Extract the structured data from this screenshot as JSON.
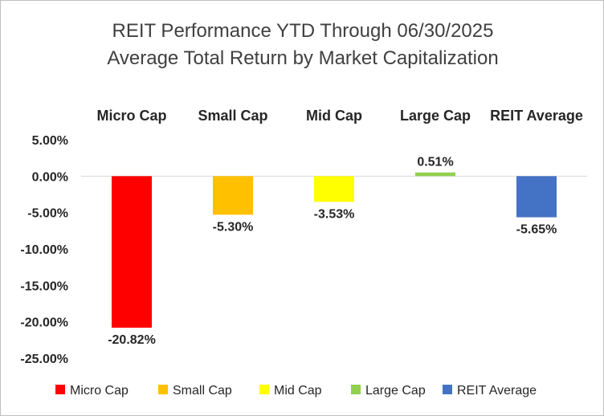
{
  "chart_data": {
    "type": "bar",
    "title": [
      "REIT Performance YTD Through 06/30/2025",
      "Average Total Return by Market Capitalization"
    ],
    "categories": [
      "Micro Cap",
      "Small Cap",
      "Mid Cap",
      "Large Cap",
      "REIT Average"
    ],
    "values": [
      -20.82,
      -5.3,
      -3.53,
      0.51,
      -5.65
    ],
    "value_labels": [
      "-20.82%",
      "-5.30%",
      "-3.53%",
      "0.51%",
      "-5.65%"
    ],
    "colors": [
      "#ff0000",
      "#ffc000",
      "#ffff00",
      "#92d050",
      "#4472c4"
    ],
    "yticks": [
      5,
      0,
      -5,
      -10,
      -15,
      -20,
      -25
    ],
    "ytick_labels": [
      "5.00%",
      "0.00%",
      "-5.00%",
      "-10.00%",
      "-15.00%",
      "-20.00%",
      "-25.00%"
    ],
    "ylim": [
      -25,
      5
    ],
    "xlabel": "",
    "ylabel": "",
    "category_labels_position": "top",
    "grid": false,
    "legend": "bottom",
    "legend_entries": [
      "Micro Cap",
      "Small Cap",
      "Mid Cap",
      "Large Cap",
      "REIT Average"
    ]
  }
}
